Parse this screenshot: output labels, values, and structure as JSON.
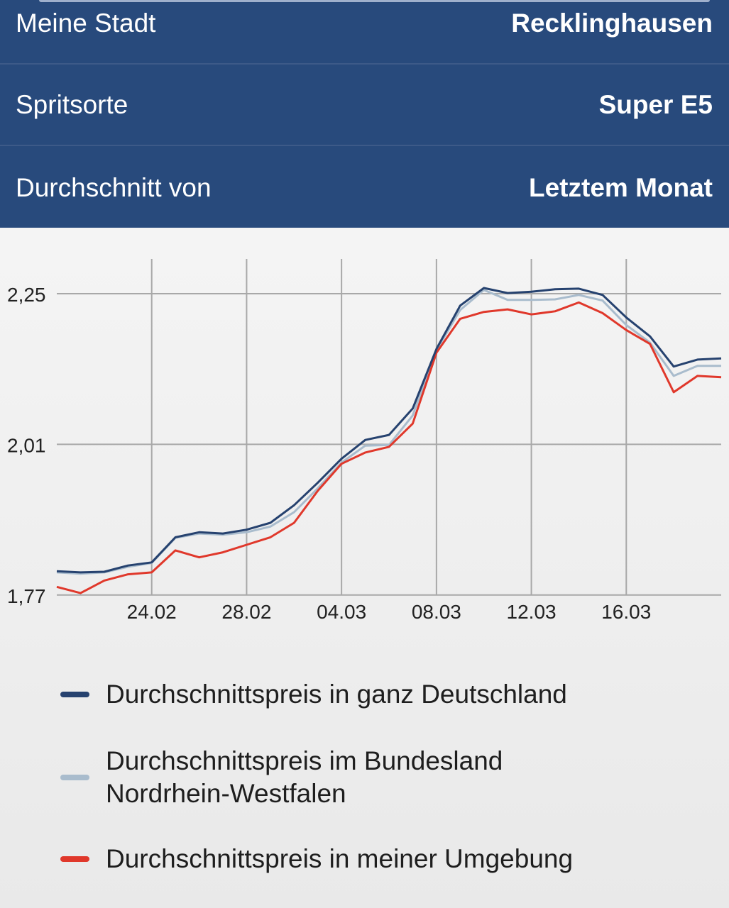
{
  "settings": {
    "rows": [
      {
        "label": "Meine Stadt",
        "value": "Recklinghausen"
      },
      {
        "label": "Spritsorte",
        "value": "Super E5"
      },
      {
        "label": "Durchschnitt von",
        "value": "Letztem Monat"
      }
    ]
  },
  "chart_data": {
    "type": "line",
    "x": [
      "20.02",
      "21.02",
      "22.02",
      "23.02",
      "24.02",
      "25.02",
      "26.02",
      "27.02",
      "28.02",
      "01.03",
      "02.03",
      "03.03",
      "04.03",
      "05.03",
      "06.03",
      "07.03",
      "08.03",
      "09.03",
      "10.03",
      "11.03",
      "12.03",
      "13.03",
      "14.03",
      "15.03",
      "16.03",
      "17.03",
      "18.03",
      "19.03",
      "20.03"
    ],
    "xticks": [
      "24.02",
      "28.02",
      "04.03",
      "08.03",
      "12.03",
      "16.03"
    ],
    "yticks": [
      "2,25",
      "2,01",
      "1,77"
    ],
    "ytick_values": [
      2.25,
      2.01,
      1.77
    ],
    "ylim": [
      1.77,
      2.3
    ],
    "grid": true,
    "legend_position": "bottom",
    "series": [
      {
        "name": "Durchschnittspreis in ganz Deutschland",
        "color": "#26426f",
        "values": [
          1.808,
          1.806,
          1.807,
          1.817,
          1.822,
          1.862,
          1.87,
          1.868,
          1.874,
          1.885,
          1.913,
          1.949,
          1.987,
          2.017,
          2.025,
          2.067,
          2.162,
          2.231,
          2.259,
          2.251,
          2.253,
          2.257,
          2.258,
          2.248,
          2.212,
          2.182,
          2.134,
          2.145,
          2.147
        ]
      },
      {
        "name": "Durchschnittspreis im Bundesland Nordrhein-Westfalen",
        "color": "#a9bccd",
        "values": [
          1.806,
          1.804,
          1.806,
          1.815,
          1.821,
          1.861,
          1.868,
          1.866,
          1.87,
          1.879,
          1.902,
          1.94,
          1.981,
          2.008,
          2.009,
          2.056,
          2.16,
          2.224,
          2.256,
          2.24,
          2.24,
          2.241,
          2.248,
          2.239,
          2.2,
          2.172,
          2.119,
          2.135,
          2.135
        ]
      },
      {
        "name": "Durchschnittspreis in meiner Umgebung",
        "color": "#e0382b",
        "values": [
          1.783,
          1.773,
          1.793,
          1.803,
          1.806,
          1.841,
          1.83,
          1.838,
          1.85,
          1.862,
          1.885,
          1.936,
          1.979,
          1.997,
          2.006,
          2.043,
          2.156,
          2.21,
          2.221,
          2.225,
          2.217,
          2.222,
          2.236,
          2.219,
          2.192,
          2.17,
          2.093,
          2.119,
          2.117
        ]
      }
    ]
  }
}
